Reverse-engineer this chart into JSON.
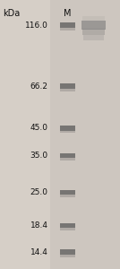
{
  "background_color": "#d6cfc7",
  "gel_bg": "#cdc6be",
  "marker_labels": [
    "116.0",
    "66.2",
    "45.0",
    "35.0",
    "25.0",
    "18.4",
    "14.4"
  ],
  "marker_kda": [
    116.0,
    66.2,
    45.0,
    35.0,
    25.0,
    18.4,
    14.4
  ],
  "marker_band_color": "#5a5a5a",
  "sample_band_kda": 116.0,
  "sample_band_color_dark": "#7a7a7a",
  "sample_band_color_light": "#b0a8a0",
  "title_kda": "kDa",
  "title_M": "M",
  "label_color": "#111111",
  "label_fontsize": 6.5,
  "header_fontsize": 7.0,
  "log_min": 1.134,
  "log_max": 2.09
}
